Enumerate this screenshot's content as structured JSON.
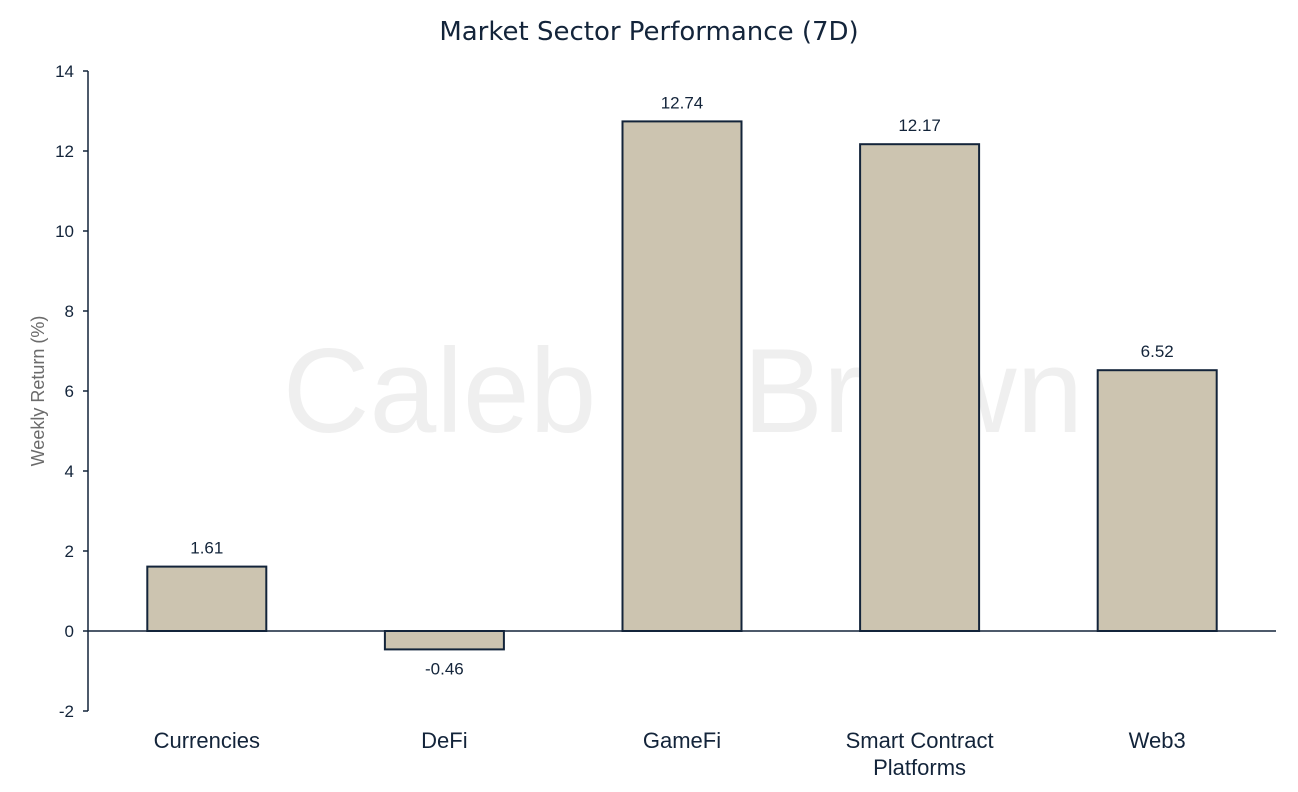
{
  "watermark": "Caleb & Brown",
  "chart_data": {
    "type": "bar",
    "title": "Market Sector Performance (7D)",
    "xlabel": "",
    "ylabel": "Weekly  Return (%)",
    "categories": [
      "Currencies",
      "DeFi",
      "GameFi",
      "Smart Contract Platforms",
      "Web3"
    ],
    "category_lines": [
      [
        "Currencies"
      ],
      [
        "DeFi"
      ],
      [
        "GameFi"
      ],
      [
        "Smart Contract",
        "Platforms"
      ],
      [
        "Web3"
      ]
    ],
    "values": [
      1.61,
      -0.46,
      12.74,
      12.17,
      6.52
    ],
    "data_labels": [
      "1.61",
      "-0.46",
      "12.74",
      "12.17",
      "6.52"
    ],
    "ylim": [
      -2,
      14
    ],
    "yticks": [
      -2,
      0,
      2,
      4,
      6,
      8,
      10,
      12,
      14
    ],
    "grid": false,
    "legend": "none",
    "colors": {
      "bar_fill": "#ccc4b0",
      "bar_stroke": "#13243a",
      "axis": "#13243a",
      "text": "#13243a",
      "ylabel": "#6b6b6b",
      "watermark": "#efefef"
    }
  }
}
